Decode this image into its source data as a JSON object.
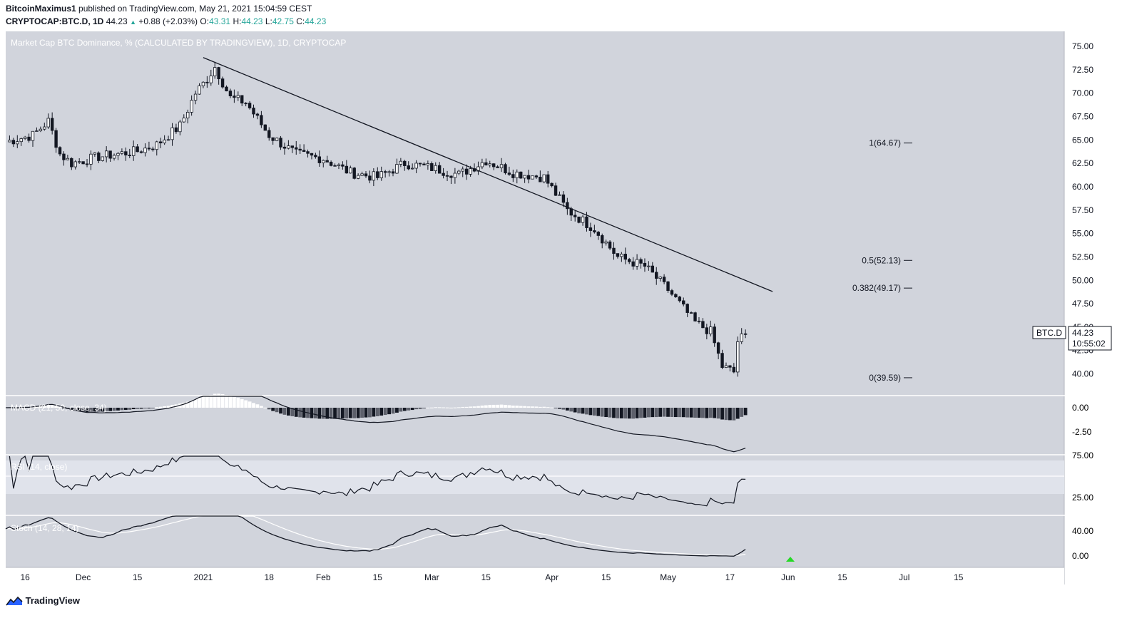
{
  "header": {
    "author": "BitcoinMaximus1",
    "published_text": "published on TradingView.com, May 21, 2021 15:04:59 CEST",
    "symbol": "CRYPTOCAP:BTC.D, 1D",
    "last": "44.23",
    "change": "+0.88 (+2.03%)",
    "o_label": "O:",
    "o_value": "43.31",
    "h_label": "H:",
    "h_value": "44.23",
    "l_label": "L:",
    "l_value": "42.75",
    "c_label": "C:",
    "c_value": "44.23"
  },
  "main_pane": {
    "title": "Market Cap BTC Dominance, % (CALCULATED BY TRADINGVIEW), 1D, CRYPTOCAP",
    "y_ticks": [
      "75.00",
      "72.50",
      "70.00",
      "67.50",
      "65.00",
      "62.50",
      "60.00",
      "57.50",
      "55.00",
      "52.50",
      "50.00",
      "47.50",
      "45.00",
      "42.50",
      "40.00"
    ],
    "price_label": "BTC.D",
    "price_value": "44.23",
    "countdown": "10:55:02"
  },
  "fibonacci": [
    {
      "label": "1(64.67)",
      "value": 64.67
    },
    {
      "label": "0.5(52.13)",
      "value": 52.13
    },
    {
      "label": "0.382(49.17)",
      "value": 49.17
    },
    {
      "label": "0(39.59)",
      "value": 39.59
    }
  ],
  "macd": {
    "title": "MACD (21, 50, close, 34)",
    "y_ticks": [
      "0.00",
      "-2.50"
    ]
  },
  "rsi": {
    "title": "RSI (14, close)",
    "y_ticks": [
      "75.00",
      "25.00"
    ]
  },
  "stoch": {
    "title": "Stoch (14, 28, 14)",
    "y_ticks": [
      "40.00",
      "0.00"
    ]
  },
  "x_axis": {
    "ticks": [
      "16",
      "Dec",
      "15",
      "2021",
      "18",
      "Feb",
      "15",
      "Mar",
      "15",
      "Apr",
      "15",
      "May",
      "17",
      "Jun",
      "15",
      "Jul",
      "15"
    ]
  },
  "footer": {
    "brand": "TradingView"
  },
  "colors": {
    "pane_bg": "#d1d4dc",
    "candle": "#131722",
    "trendline": "#131722",
    "signal_arrow": "#26d926"
  },
  "chart_data": {
    "type": "candlestick",
    "symbol": "CRYPTOCAP:BTC.D",
    "interval": "1D",
    "title": "Market Cap BTC Dominance, % (CALCULATED BY TRADINGVIEW), 1D, CRYPTOCAP",
    "x_ticks": [
      "16",
      "Dec",
      "15",
      "2021",
      "18",
      "Feb",
      "15",
      "Mar",
      "15",
      "Apr",
      "15",
      "May",
      "17",
      "Jun",
      "15",
      "Jul",
      "15"
    ],
    "ylim": [
      38,
      76
    ],
    "close_path": [
      {
        "date": "2020-11-11",
        "close": 64.8
      },
      {
        "date": "2020-11-18",
        "close": 65.5
      },
      {
        "date": "2020-11-22",
        "close": 67.0
      },
      {
        "date": "2020-11-25",
        "close": 63.5
      },
      {
        "date": "2020-11-28",
        "close": 62.5
      },
      {
        "date": "2020-12-05",
        "close": 63.2
      },
      {
        "date": "2020-12-15",
        "close": 63.8
      },
      {
        "date": "2020-12-20",
        "close": 64.5
      },
      {
        "date": "2020-12-26",
        "close": 66.5
      },
      {
        "date": "2020-12-30",
        "close": 70.0
      },
      {
        "date": "2021-01-02",
        "close": 71.5
      },
      {
        "date": "2021-01-04",
        "close": 72.8
      },
      {
        "date": "2021-01-08",
        "close": 69.5
      },
      {
        "date": "2021-01-12",
        "close": 69.0
      },
      {
        "date": "2021-01-18",
        "close": 65.5
      },
      {
        "date": "2021-01-25",
        "close": 63.5
      },
      {
        "date": "2021-02-01",
        "close": 63.0
      },
      {
        "date": "2021-02-08",
        "close": 61.5
      },
      {
        "date": "2021-02-15",
        "close": 61.0
      },
      {
        "date": "2021-02-22",
        "close": 62.5
      },
      {
        "date": "2021-03-01",
        "close": 62.0
      },
      {
        "date": "2021-03-08",
        "close": 61.3
      },
      {
        "date": "2021-03-15",
        "close": 62.8
      },
      {
        "date": "2021-03-22",
        "close": 61.5
      },
      {
        "date": "2021-03-30",
        "close": 61.0
      },
      {
        "date": "2021-04-05",
        "close": 57.5
      },
      {
        "date": "2021-04-12",
        "close": 55.5
      },
      {
        "date": "2021-04-18",
        "close": 52.5
      },
      {
        "date": "2021-04-25",
        "close": 51.5
      },
      {
        "date": "2021-05-01",
        "close": 49.0
      },
      {
        "date": "2021-05-08",
        "close": 45.5
      },
      {
        "date": "2021-05-12",
        "close": 44.5
      },
      {
        "date": "2021-05-15",
        "close": 40.8
      },
      {
        "date": "2021-05-18",
        "close": 40.2
      },
      {
        "date": "2021-05-19",
        "close": 43.5
      },
      {
        "date": "2021-05-21",
        "close": 44.23
      }
    ],
    "trendline": [
      {
        "date": "2021-01-01",
        "value": 73.8
      },
      {
        "date": "2021-05-28",
        "value": 48.8
      }
    ],
    "fib_levels": [
      {
        "ratio": "1",
        "value": 64.67
      },
      {
        "ratio": "0.5",
        "value": 52.13
      },
      {
        "ratio": "0.382",
        "value": 49.17
      },
      {
        "ratio": "0",
        "value": 39.59
      }
    ],
    "last_price": 44.23,
    "indicators": [
      {
        "name": "MACD (21, 50, close, 34)"
      },
      {
        "name": "RSI (14, close)"
      },
      {
        "name": "Stoch (14, 28, 14)"
      }
    ]
  }
}
